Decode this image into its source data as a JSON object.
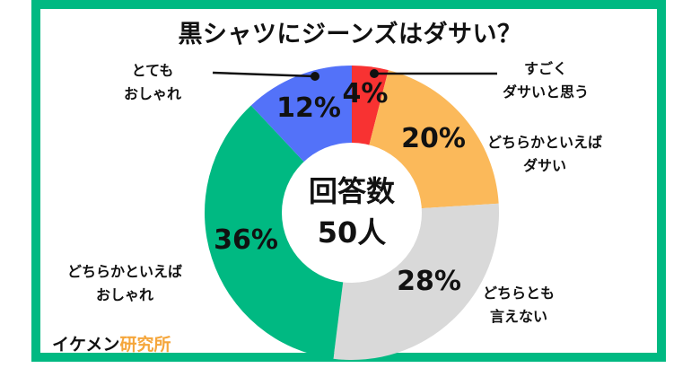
{
  "title": "黒シャツにジーンズはダサい？",
  "center": {
    "line1": "回答数",
    "line2": "50人"
  },
  "brand": {
    "part1": "イケメン",
    "part2": "研究所"
  },
  "colors": {
    "frame": "#00b982",
    "very_uncool": "#f83232",
    "somewhat_uncool": "#fbb95a",
    "neutral": "#d9d9d9",
    "somewhat_stylish": "#00b982",
    "very_stylish": "#5372f9"
  },
  "labels": {
    "very_uncool": {
      "line1": "すごく",
      "line2": "ダサいと思う"
    },
    "somewhat_uncool": {
      "line1": "どちらかといえば",
      "line2": "ダサい"
    },
    "neutral": {
      "line1": "どちらとも",
      "line2": "言えない"
    },
    "somewhat_stylish": {
      "line1": "どちらかといえば",
      "line2": "おしゃれ"
    },
    "very_stylish": {
      "line1": "とても",
      "line2": "おしゃれ"
    }
  },
  "pct_text": {
    "very_uncool": "4%",
    "somewhat_uncool": "20%",
    "neutral": "28%",
    "somewhat_stylish": "36%",
    "very_stylish": "12%"
  },
  "chart_data": {
    "type": "pie",
    "subtype": "donut",
    "title": "黒シャツにジーンズはダサい？",
    "center_label": "回答数 50人",
    "total_respondents": 50,
    "categories": [
      "すごくダサいと思う",
      "どちらかといえばダサい",
      "どちらとも言えない",
      "どちらかといえばおしゃれ",
      "とてもおしゃれ"
    ],
    "values": [
      4,
      20,
      28,
      36,
      12
    ],
    "unit": "%",
    "colors": [
      "#f83232",
      "#fbb95a",
      "#d9d9d9",
      "#00b982",
      "#5372f9"
    ],
    "start_angle": "12 o'clock, clockwise",
    "legend": "none (callout labels beside slices)"
  }
}
